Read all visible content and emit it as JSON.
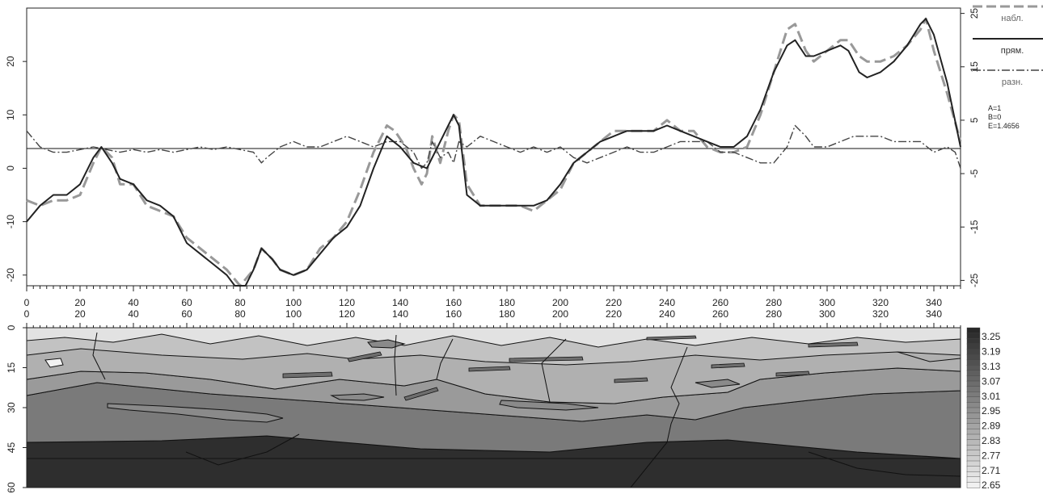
{
  "chart_data": [
    {
      "type": "line",
      "xlim": [
        0,
        350
      ],
      "ylim_left": [
        -22,
        30
      ],
      "ylim_right": [
        -26,
        26
      ],
      "x_ticks": [
        0,
        20,
        40,
        60,
        80,
        100,
        120,
        140,
        160,
        180,
        200,
        220,
        240,
        260,
        280,
        300,
        320,
        340
      ],
      "y_ticks_left": [
        -20,
        -10,
        0,
        10,
        20
      ],
      "y_ticks_right": [
        -25,
        -15,
        -5,
        5,
        15,
        25
      ],
      "zero_line": 4,
      "legend": [
        "набл.",
        "прям.",
        "разн."
      ],
      "params": [
        "A=1",
        "B=0",
        "E=1.4656"
      ],
      "series": [
        {
          "name": "набл.",
          "style": "dashed",
          "x": [
            0,
            5,
            10,
            15,
            20,
            25,
            28,
            32,
            35,
            40,
            45,
            50,
            55,
            60,
            65,
            70,
            75,
            80,
            85,
            88,
            92,
            95,
            100,
            105,
            110,
            115,
            120,
            125,
            130,
            135,
            138,
            142,
            145,
            148,
            150,
            152,
            155,
            158,
            160,
            162,
            165,
            170,
            175,
            180,
            185,
            190,
            195,
            200,
            205,
            210,
            215,
            220,
            225,
            230,
            235,
            240,
            245,
            250,
            255,
            260,
            265,
            270,
            275,
            280,
            285,
            288,
            292,
            295,
            300,
            305,
            308,
            312,
            315,
            320,
            325,
            330,
            335,
            337,
            340,
            345,
            350
          ],
          "y": [
            -6,
            -7,
            -6,
            -6,
            -5,
            1,
            4,
            2,
            -3,
            -3,
            -7,
            -8,
            -9,
            -13,
            -15,
            -17,
            -19,
            -22,
            -19,
            -15,
            -17,
            -19,
            -20,
            -19,
            -15,
            -13,
            -10,
            -4,
            3,
            8,
            7,
            4,
            0,
            -3,
            -1,
            6,
            1,
            7,
            10,
            9,
            -3,
            -7,
            -7,
            -7,
            -7,
            -8,
            -6,
            -4,
            1,
            3,
            5,
            7,
            7,
            7,
            7,
            9,
            7,
            7,
            4,
            3,
            3,
            4,
            10,
            18,
            26,
            27,
            22,
            20,
            22,
            24,
            24,
            21,
            20,
            20,
            21,
            23,
            26,
            28,
            22,
            14,
            5
          ]
        },
        {
          "name": "прям.",
          "style": "solid",
          "x": [
            0,
            5,
            10,
            15,
            20,
            25,
            28,
            32,
            35,
            40,
            45,
            50,
            55,
            60,
            65,
            70,
            75,
            78,
            82,
            85,
            88,
            92,
            95,
            100,
            105,
            110,
            115,
            120,
            125,
            130,
            135,
            140,
            145,
            150,
            155,
            158,
            160,
            162,
            165,
            170,
            175,
            180,
            185,
            190,
            195,
            200,
            205,
            210,
            215,
            220,
            225,
            230,
            235,
            240,
            245,
            250,
            255,
            260,
            265,
            270,
            275,
            280,
            285,
            288,
            292,
            295,
            300,
            305,
            308,
            312,
            315,
            320,
            325,
            330,
            335,
            337,
            340,
            345,
            350
          ],
          "y": [
            -10,
            -7,
            -5,
            -5,
            -3,
            2,
            4,
            1,
            -2,
            -3,
            -6,
            -7,
            -9,
            -14,
            -16,
            -18,
            -20,
            -22,
            -22,
            -19,
            -15,
            -17,
            -19,
            -20,
            -19,
            -16,
            -13,
            -11,
            -7,
            0,
            6,
            4,
            1,
            0,
            5,
            8,
            10,
            8,
            -5,
            -7,
            -7,
            -7,
            -7,
            -7,
            -6,
            -3,
            1,
            3,
            5,
            6,
            7,
            7,
            7,
            8,
            7,
            6,
            5,
            4,
            4,
            6,
            11,
            18,
            23,
            24,
            21,
            21,
            22,
            23,
            22,
            18,
            17,
            18,
            20,
            23,
            27,
            28,
            25,
            16,
            4
          ]
        },
        {
          "name": "разн.",
          "style": "dashdot",
          "x": [
            0,
            5,
            10,
            15,
            20,
            25,
            30,
            35,
            40,
            45,
            50,
            55,
            60,
            65,
            70,
            75,
            80,
            85,
            88,
            90,
            95,
            100,
            105,
            110,
            115,
            120,
            125,
            130,
            135,
            140,
            145,
            148,
            150,
            152,
            155,
            158,
            160,
            162,
            165,
            170,
            175,
            180,
            185,
            190,
            195,
            200,
            205,
            210,
            215,
            220,
            225,
            230,
            235,
            240,
            245,
            250,
            255,
            260,
            265,
            270,
            275,
            280,
            285,
            288,
            292,
            295,
            300,
            305,
            310,
            315,
            320,
            325,
            330,
            335,
            340,
            345,
            348,
            350
          ],
          "y": [
            7,
            4,
            3,
            3,
            3.5,
            4,
            3.5,
            3,
            3.5,
            3,
            3.5,
            3,
            3.5,
            4,
            3.5,
            4,
            3.5,
            3,
            1,
            2,
            4,
            5,
            4,
            4,
            5,
            6,
            5,
            4,
            5,
            5,
            3,
            0,
            1,
            5,
            2,
            3,
            1,
            5,
            4,
            6,
            5,
            4,
            3,
            4,
            3,
            4,
            2,
            1,
            2,
            3,
            4,
            3,
            3,
            4,
            5,
            5,
            5,
            3,
            3,
            2,
            1,
            1,
            4,
            8,
            6,
            4,
            4,
            5,
            6,
            6,
            6,
            5,
            5,
            5,
            3,
            4,
            3,
            0
          ]
        }
      ]
    },
    {
      "type": "heatmap",
      "xlim": [
        0,
        350
      ],
      "ylim": [
        0,
        60
      ],
      "x_ticks": [
        0,
        20,
        40,
        60,
        80,
        100,
        120,
        140,
        160,
        180,
        200,
        220,
        240,
        260,
        280,
        300,
        320,
        340
      ],
      "y_ticks": [
        0,
        15,
        30,
        45,
        60
      ],
      "colorbar": [
        "3.25",
        "3.19",
        "3.13",
        "3.07",
        "3.01",
        "2.95",
        "2.89",
        "2.83",
        "2.77",
        "2.71",
        "2.65"
      ]
    }
  ]
}
